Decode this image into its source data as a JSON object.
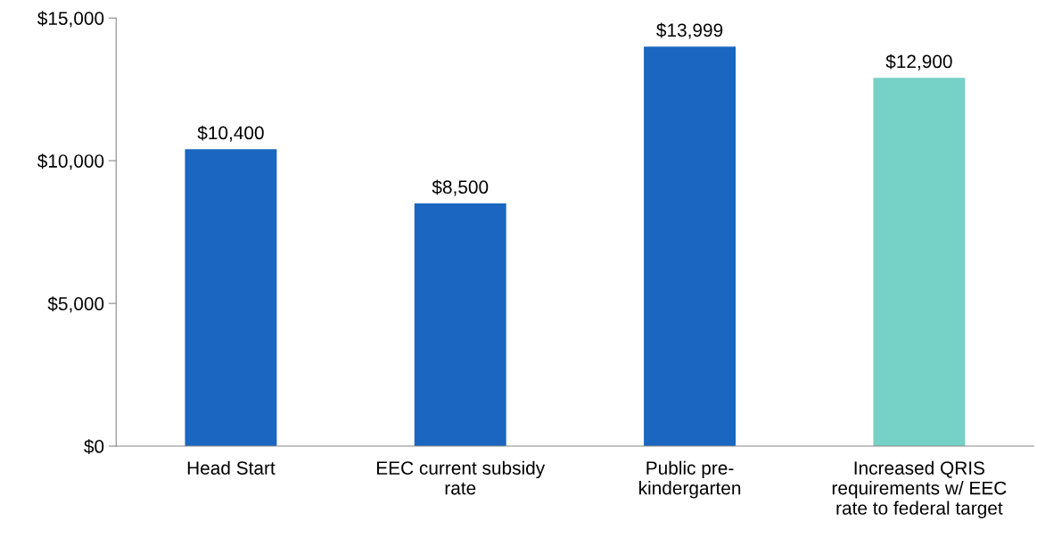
{
  "chart_data": {
    "type": "bar",
    "categories": [
      "Head Start",
      "EEC current subsidy\nrate",
      "Public pre-\nkindergarten",
      "Increased QRIS\nrequirements w/ EEC\nrate to federal target"
    ],
    "values": [
      10400,
      8500,
      13999,
      12900
    ],
    "colors": [
      "#1a66c0",
      "#1a66c0",
      "#1a66c0",
      "#76d1c6"
    ],
    "value_labels": [
      "$10,400",
      "$8,500",
      "$13,999",
      "$12,900"
    ],
    "ylim": [
      0,
      15000
    ],
    "yticks": [
      {
        "value": 0,
        "label": "$0"
      },
      {
        "value": 5000,
        "label": "$5,000"
      },
      {
        "value": 10000,
        "label": "$10,000"
      },
      {
        "value": 15000,
        "label": "$15,000"
      }
    ],
    "grid": false,
    "legend": false
  }
}
